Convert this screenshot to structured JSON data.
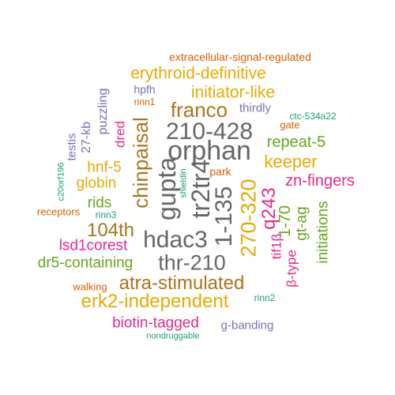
{
  "palette": {
    "teal": "#1b9e77",
    "orange": "#d95f02",
    "purple": "#7570b3",
    "magenta": "#e7298a",
    "green": "#66a61e",
    "gold": "#e6ab02",
    "brown": "#a6761d",
    "gray": "#666666"
  },
  "words": [
    {
      "text": "extracellular-signal-regulated",
      "color": "orange"
    },
    {
      "text": "erythroid-definitive",
      "color": "gold"
    },
    {
      "text": "initiator-like",
      "color": "gold"
    },
    {
      "text": "hpfh",
      "color": "purple"
    },
    {
      "text": "rinn1",
      "color": "orange"
    },
    {
      "text": "puzzling",
      "color": "purple"
    },
    {
      "text": "franco",
      "color": "brown"
    },
    {
      "text": "thirdly",
      "color": "purple"
    },
    {
      "text": "ctc-534a22",
      "color": "teal"
    },
    {
      "text": "gate",
      "color": "orange"
    },
    {
      "text": "210-428",
      "color": "gray"
    },
    {
      "text": "orphan",
      "color": "gray"
    },
    {
      "text": "repeat-5",
      "color": "green"
    },
    {
      "text": "27-kb",
      "color": "purple"
    },
    {
      "text": "testis",
      "color": "purple"
    },
    {
      "text": "chinpaisal",
      "color": "brown"
    },
    {
      "text": "dred",
      "color": "magenta"
    },
    {
      "text": "keeper",
      "color": "gold"
    },
    {
      "text": "hnf-5",
      "color": "gold"
    },
    {
      "text": "c20orf196",
      "color": "teal"
    },
    {
      "text": "globin",
      "color": "gold"
    },
    {
      "text": "park",
      "color": "orange"
    },
    {
      "text": "zn-fingers",
      "color": "magenta"
    },
    {
      "text": "shieldin",
      "color": "teal"
    },
    {
      "text": "gupta",
      "color": "gray"
    },
    {
      "text": "tr2tr4",
      "color": "gray"
    },
    {
      "text": "rids",
      "color": "green"
    },
    {
      "text": "receptors",
      "color": "orange"
    },
    {
      "text": "rinn3",
      "color": "teal"
    },
    {
      "text": "1-135",
      "color": "gray"
    },
    {
      "text": "270-320",
      "color": "gold"
    },
    {
      "text": "q243",
      "color": "magenta"
    },
    {
      "text": "1-70",
      "color": "green"
    },
    {
      "text": "104th",
      "color": "brown"
    },
    {
      "text": "gt-ag",
      "color": "green"
    },
    {
      "text": "initiations",
      "color": "green"
    },
    {
      "text": "hdac3",
      "color": "gray"
    },
    {
      "text": "lsd1corest",
      "color": "magenta"
    },
    {
      "text": "tif1β",
      "color": "magenta"
    },
    {
      "text": "β-type",
      "color": "magenta"
    },
    {
      "text": "thr-210",
      "color": "gray"
    },
    {
      "text": "dr5-containing",
      "color": "green"
    },
    {
      "text": "atra-stimulated",
      "color": "brown"
    },
    {
      "text": "walking",
      "color": "orange"
    },
    {
      "text": "rinn2",
      "color": "teal"
    },
    {
      "text": "erk2-independent",
      "color": "gold"
    },
    {
      "text": "biotin-tagged",
      "color": "magenta"
    },
    {
      "text": "g-banding",
      "color": "purple"
    },
    {
      "text": "nondruggable",
      "color": "teal"
    }
  ]
}
